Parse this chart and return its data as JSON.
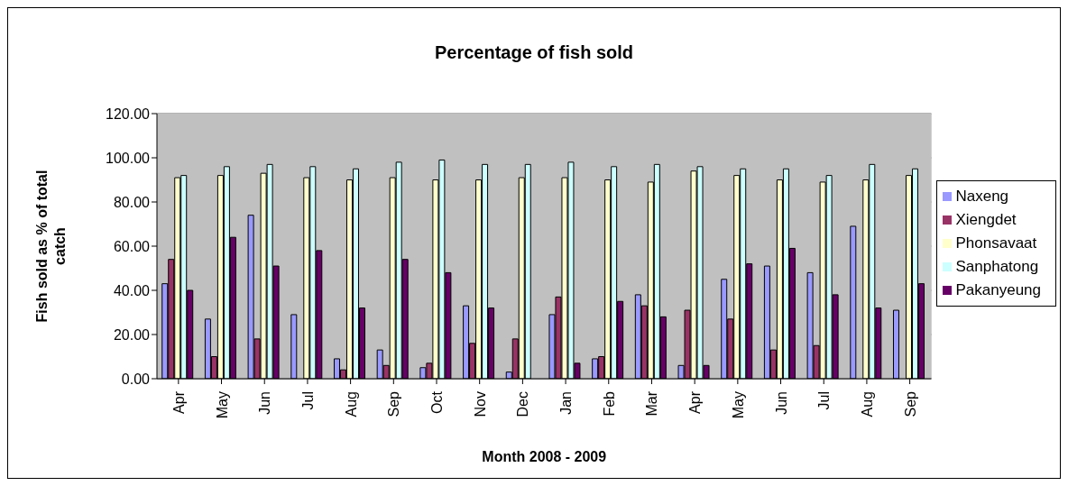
{
  "chart_data": {
    "type": "bar",
    "title": "Percentage of fish sold",
    "xlabel": "Month 2008 - 2009",
    "ylabel": "Fish sold as % of total catch",
    "categories": [
      "Apr",
      "May",
      "Jun",
      "Jul",
      "Aug",
      "Sep",
      "Oct",
      "Nov",
      "Dec",
      "Jan",
      "Feb",
      "Mar",
      "Apr",
      "May",
      "Jun",
      "Jul",
      "Aug",
      "Sep"
    ],
    "series": [
      {
        "name": "Naxeng",
        "color": "#9999ff",
        "values": [
          43,
          27,
          74,
          29,
          9,
          13,
          5,
          33,
          3,
          29,
          9,
          38,
          6,
          45,
          51,
          48,
          69,
          31
        ]
      },
      {
        "name": "Xiengdet",
        "color": "#993366",
        "values": [
          54,
          10,
          18,
          0,
          4,
          6,
          7,
          16,
          18,
          37,
          10,
          33,
          31,
          27,
          13,
          15,
          0,
          0
        ]
      },
      {
        "name": "Phonsavaat",
        "color": "#ffffcc",
        "values": [
          91,
          92,
          93,
          91,
          90,
          91,
          90,
          90,
          91,
          91,
          90,
          89,
          94,
          92,
          90,
          89,
          90,
          92
        ]
      },
      {
        "name": "Sanphatong",
        "color": "#ccffff",
        "values": [
          92,
          96,
          97,
          96,
          95,
          98,
          99,
          97,
          97,
          98,
          96,
          97,
          96,
          95,
          95,
          92,
          97,
          95
        ]
      },
      {
        "name": "Pakanyeung",
        "color": "#660066",
        "values": [
          40,
          64,
          51,
          58,
          32,
          54,
          48,
          32,
          0,
          7,
          35,
          28,
          6,
          52,
          59,
          38,
          32,
          43
        ]
      }
    ],
    "ylim": [
      0,
      120
    ],
    "yticks": [
      {
        "value": 0,
        "label": "0.00"
      },
      {
        "value": 20,
        "label": "20.00"
      },
      {
        "value": 40,
        "label": "40.00"
      },
      {
        "value": 60,
        "label": "60.00"
      },
      {
        "value": 80,
        "label": "80.00"
      },
      {
        "value": 100,
        "label": "100.00"
      },
      {
        "value": 120,
        "label": "120.00"
      }
    ],
    "grid": "y",
    "legend": "right"
  }
}
